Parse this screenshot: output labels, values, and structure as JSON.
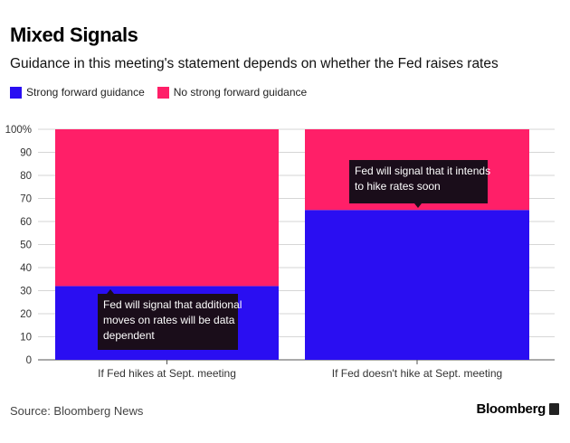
{
  "header": {
    "title": "Mixed Signals",
    "subtitle": "Guidance in this meeting's statement depends on whether the Fed raises rates"
  },
  "legend": [
    {
      "label": "Strong forward guidance",
      "color": "#2a0ef2"
    },
    {
      "label": "No strong forward guidance",
      "color": "#ff1f68"
    }
  ],
  "chart_data": {
    "type": "bar",
    "stacked": true,
    "categories": [
      "If Fed hikes at Sept. meeting",
      "If Fed doesn't hike at Sept. meeting"
    ],
    "series": [
      {
        "name": "Strong forward guidance",
        "values": [
          32,
          65
        ],
        "color": "#2a0ef2"
      },
      {
        "name": "No strong forward guidance",
        "values": [
          68,
          35
        ],
        "color": "#ff1f68"
      }
    ],
    "ylim": [
      0,
      100
    ],
    "yticks": [
      "0",
      "10",
      "20",
      "30",
      "40",
      "50",
      "60",
      "70",
      "80",
      "90",
      "100%"
    ],
    "grid": true,
    "annotations": [
      {
        "category_index": 0,
        "lines": [
          "Fed will signal that additional",
          "moves on rates will be data",
          "dependent"
        ]
      },
      {
        "category_index": 1,
        "lines": [
          "Fed will signal that it intends",
          "to hike rates soon"
        ]
      }
    ]
  },
  "footer": {
    "source": "Source: Bloomberg News",
    "brand": "Bloomberg"
  }
}
